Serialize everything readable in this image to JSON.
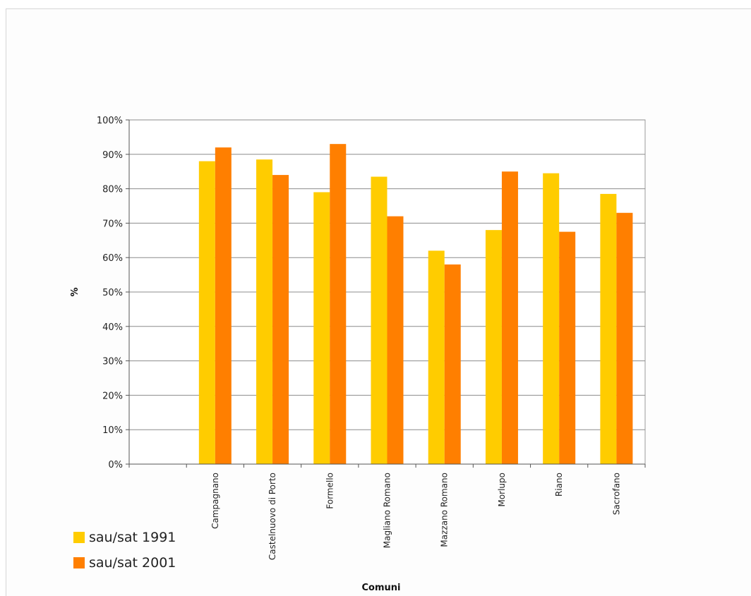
{
  "chart_data": {
    "type": "bar",
    "categories": [
      "Campagnano",
      "Castelnuovo di Porto",
      "Formello",
      "Magliano Romano",
      "Mazzano Romano",
      "Morlupo",
      "Riano",
      "Sacrofano"
    ],
    "series": [
      {
        "name": "sau/sat 1991",
        "color": "#FFCC00",
        "values": [
          88,
          88.5,
          79,
          83.5,
          62,
          68,
          84.5,
          78.5
        ]
      },
      {
        "name": "sau/sat 2001",
        "color": "#FF7F00",
        "values": [
          92,
          84,
          93,
          72,
          58,
          85,
          67.5,
          73
        ]
      }
    ],
    "ylabel": "%",
    "xlabel": "Comuni",
    "yticks": [
      "0%",
      "10%",
      "20%",
      "30%",
      "40%",
      "50%",
      "60%",
      "70%",
      "80%",
      "90%",
      "100%"
    ],
    "ylim": [
      0,
      100
    ],
    "grid": true,
    "legend_position": "bottom-left"
  }
}
